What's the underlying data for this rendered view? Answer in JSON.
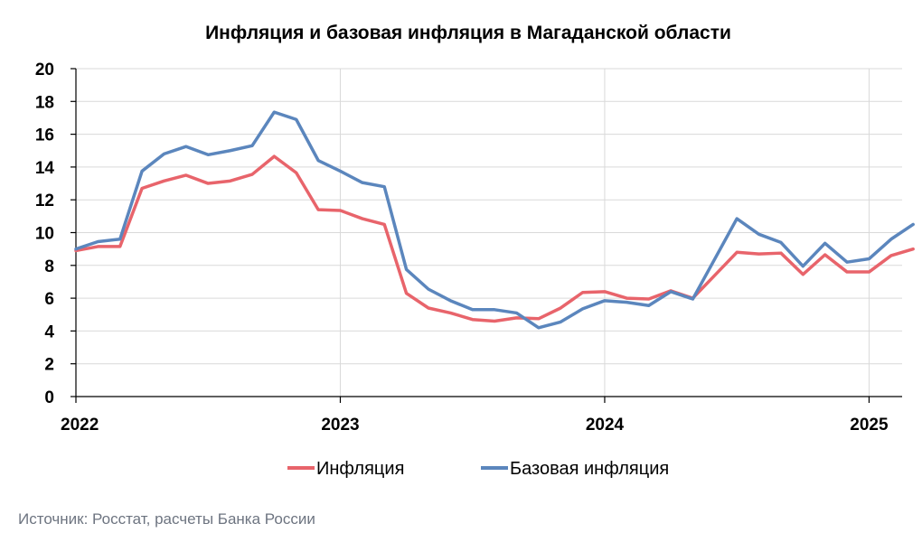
{
  "chart_data": {
    "type": "line",
    "title": "Инфляция и базовая инфляция в Магаданской области",
    "source": "Источник: Росстат, расчеты Банка России",
    "ylim": [
      0,
      20
    ],
    "yticks": [
      0,
      2,
      4,
      6,
      8,
      10,
      12,
      14,
      16,
      18,
      20
    ],
    "xlim": [
      0,
      37.5
    ],
    "x_tick_labels": [
      {
        "label": "2022",
        "x": 0
      },
      {
        "label": "2023",
        "x": 12
      },
      {
        "label": "2024",
        "x": 24
      },
      {
        "label": "2025",
        "x": 36
      }
    ],
    "grid": true,
    "legend_position": "bottom-center",
    "series": [
      {
        "name": "Инфляция",
        "color": "#e8646b",
        "values": [
          8.9,
          9.15,
          9.15,
          12.7,
          13.15,
          13.5,
          13.0,
          13.15,
          13.55,
          14.65,
          13.65,
          11.4,
          11.35,
          10.85,
          10.5,
          6.3,
          5.4,
          5.1,
          4.7,
          4.6,
          4.8,
          4.75,
          5.4,
          6.35,
          6.4,
          6.0,
          5.95,
          6.45,
          6.0,
          7.4,
          8.8,
          8.7,
          8.75,
          7.45,
          8.65,
          7.6,
          7.6,
          8.6,
          9.0
        ]
      },
      {
        "name": "Базовая инфляция",
        "color": "#5b86bd",
        "values": [
          9.0,
          9.45,
          9.6,
          13.75,
          14.8,
          15.25,
          14.75,
          15.0,
          15.3,
          17.35,
          16.9,
          14.4,
          13.75,
          13.05,
          12.8,
          7.75,
          6.55,
          5.85,
          5.3,
          5.3,
          5.1,
          4.2,
          4.55,
          5.35,
          5.85,
          5.75,
          5.55,
          6.4,
          5.95,
          8.4,
          10.85,
          9.9,
          9.4,
          7.95,
          9.35,
          8.2,
          8.4,
          9.6,
          10.5
        ]
      }
    ]
  }
}
